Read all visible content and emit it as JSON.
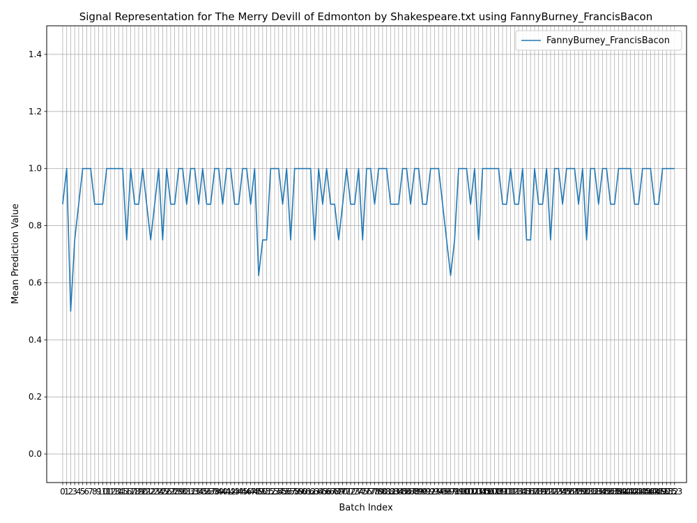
{
  "chart_data": {
    "type": "line",
    "title": "Signal Representation for The Merry Devill of Edmonton by Shakespeare.txt using FannyBurney_FrancisBacon",
    "xlabel": "Batch Index",
    "ylabel": "Mean Prediction Value",
    "ylim": [
      -0.1,
      1.5
    ],
    "xlim": [
      -4,
      156
    ],
    "y_ticks": [
      0.0,
      0.2,
      0.4,
      0.6,
      0.8,
      1.0,
      1.2,
      1.4
    ],
    "grid": true,
    "legend_position": "top-right",
    "series": [
      {
        "name": "FannyBurney_FrancisBacon",
        "color": "#1f77b4",
        "x": [
          0,
          1,
          2,
          3,
          4,
          5,
          6,
          7,
          8,
          9,
          10,
          11,
          12,
          13,
          14,
          15,
          16,
          17,
          18,
          19,
          20,
          21,
          22,
          23,
          24,
          25,
          26,
          27,
          28,
          29,
          30,
          31,
          32,
          33,
          34,
          35,
          36,
          37,
          38,
          39,
          40,
          41,
          42,
          43,
          44,
          45,
          46,
          47,
          48,
          49,
          50,
          51,
          52,
          53,
          54,
          55,
          56,
          57,
          58,
          59,
          60,
          61,
          62,
          63,
          64,
          65,
          66,
          67,
          68,
          69,
          70,
          71,
          72,
          73,
          74,
          75,
          76,
          77,
          78,
          79,
          80,
          81,
          82,
          83,
          84,
          85,
          86,
          87,
          88,
          89,
          90,
          91,
          92,
          93,
          94,
          95,
          96,
          97,
          98,
          99,
          100,
          101,
          102,
          103,
          104,
          105,
          106,
          107,
          108,
          109,
          110,
          111,
          112,
          113,
          114,
          115,
          116,
          117,
          118,
          119,
          120,
          121,
          122,
          123,
          124,
          125,
          126,
          127,
          128,
          129,
          130,
          131,
          132,
          133,
          134,
          135,
          136,
          137,
          138,
          139,
          140,
          141,
          142,
          143,
          144,
          145,
          146,
          147,
          148,
          149,
          150,
          151,
          152,
          153
        ],
        "values": [
          0.875,
          1.0,
          0.5,
          0.75,
          0.875,
          1.0,
          1.0,
          1.0,
          0.875,
          0.875,
          0.875,
          1.0,
          1.0,
          1.0,
          1.0,
          1.0,
          0.75,
          1.0,
          0.875,
          0.875,
          1.0,
          0.875,
          0.75,
          0.875,
          1.0,
          0.75,
          1.0,
          0.875,
          0.875,
          1.0,
          1.0,
          0.875,
          1.0,
          1.0,
          0.875,
          1.0,
          0.875,
          0.875,
          1.0,
          1.0,
          0.875,
          1.0,
          1.0,
          0.875,
          0.875,
          1.0,
          1.0,
          0.875,
          1.0,
          0.625,
          0.75,
          0.75,
          1.0,
          1.0,
          1.0,
          0.875,
          1.0,
          0.75,
          1.0,
          1.0,
          1.0,
          1.0,
          1.0,
          0.75,
          1.0,
          0.875,
          1.0,
          0.875,
          0.875,
          0.75,
          0.875,
          1.0,
          0.875,
          0.875,
          1.0,
          0.75,
          1.0,
          1.0,
          0.875,
          1.0,
          1.0,
          1.0,
          0.875,
          0.875,
          0.875,
          1.0,
          1.0,
          0.875,
          1.0,
          1.0,
          0.875,
          0.875,
          1.0,
          1.0,
          1.0,
          0.875,
          0.75,
          0.625,
          0.75,
          1.0,
          1.0,
          1.0,
          0.875,
          1.0,
          0.75,
          1.0,
          1.0,
          1.0,
          1.0,
          1.0,
          0.875,
          0.875,
          1.0,
          0.875,
          0.875,
          1.0,
          0.75,
          0.75,
          1.0,
          0.875,
          0.875,
          1.0,
          0.75,
          1.0,
          1.0,
          0.875,
          1.0,
          1.0,
          1.0,
          0.875,
          1.0,
          0.75,
          1.0,
          1.0,
          0.875,
          1.0,
          1.0,
          0.875,
          0.875,
          1.0,
          1.0,
          1.0,
          1.0,
          0.875,
          0.875,
          1.0,
          1.0,
          1.0,
          0.875,
          0.875,
          1.0,
          1.0,
          1.0,
          1.0
        ]
      }
    ]
  }
}
